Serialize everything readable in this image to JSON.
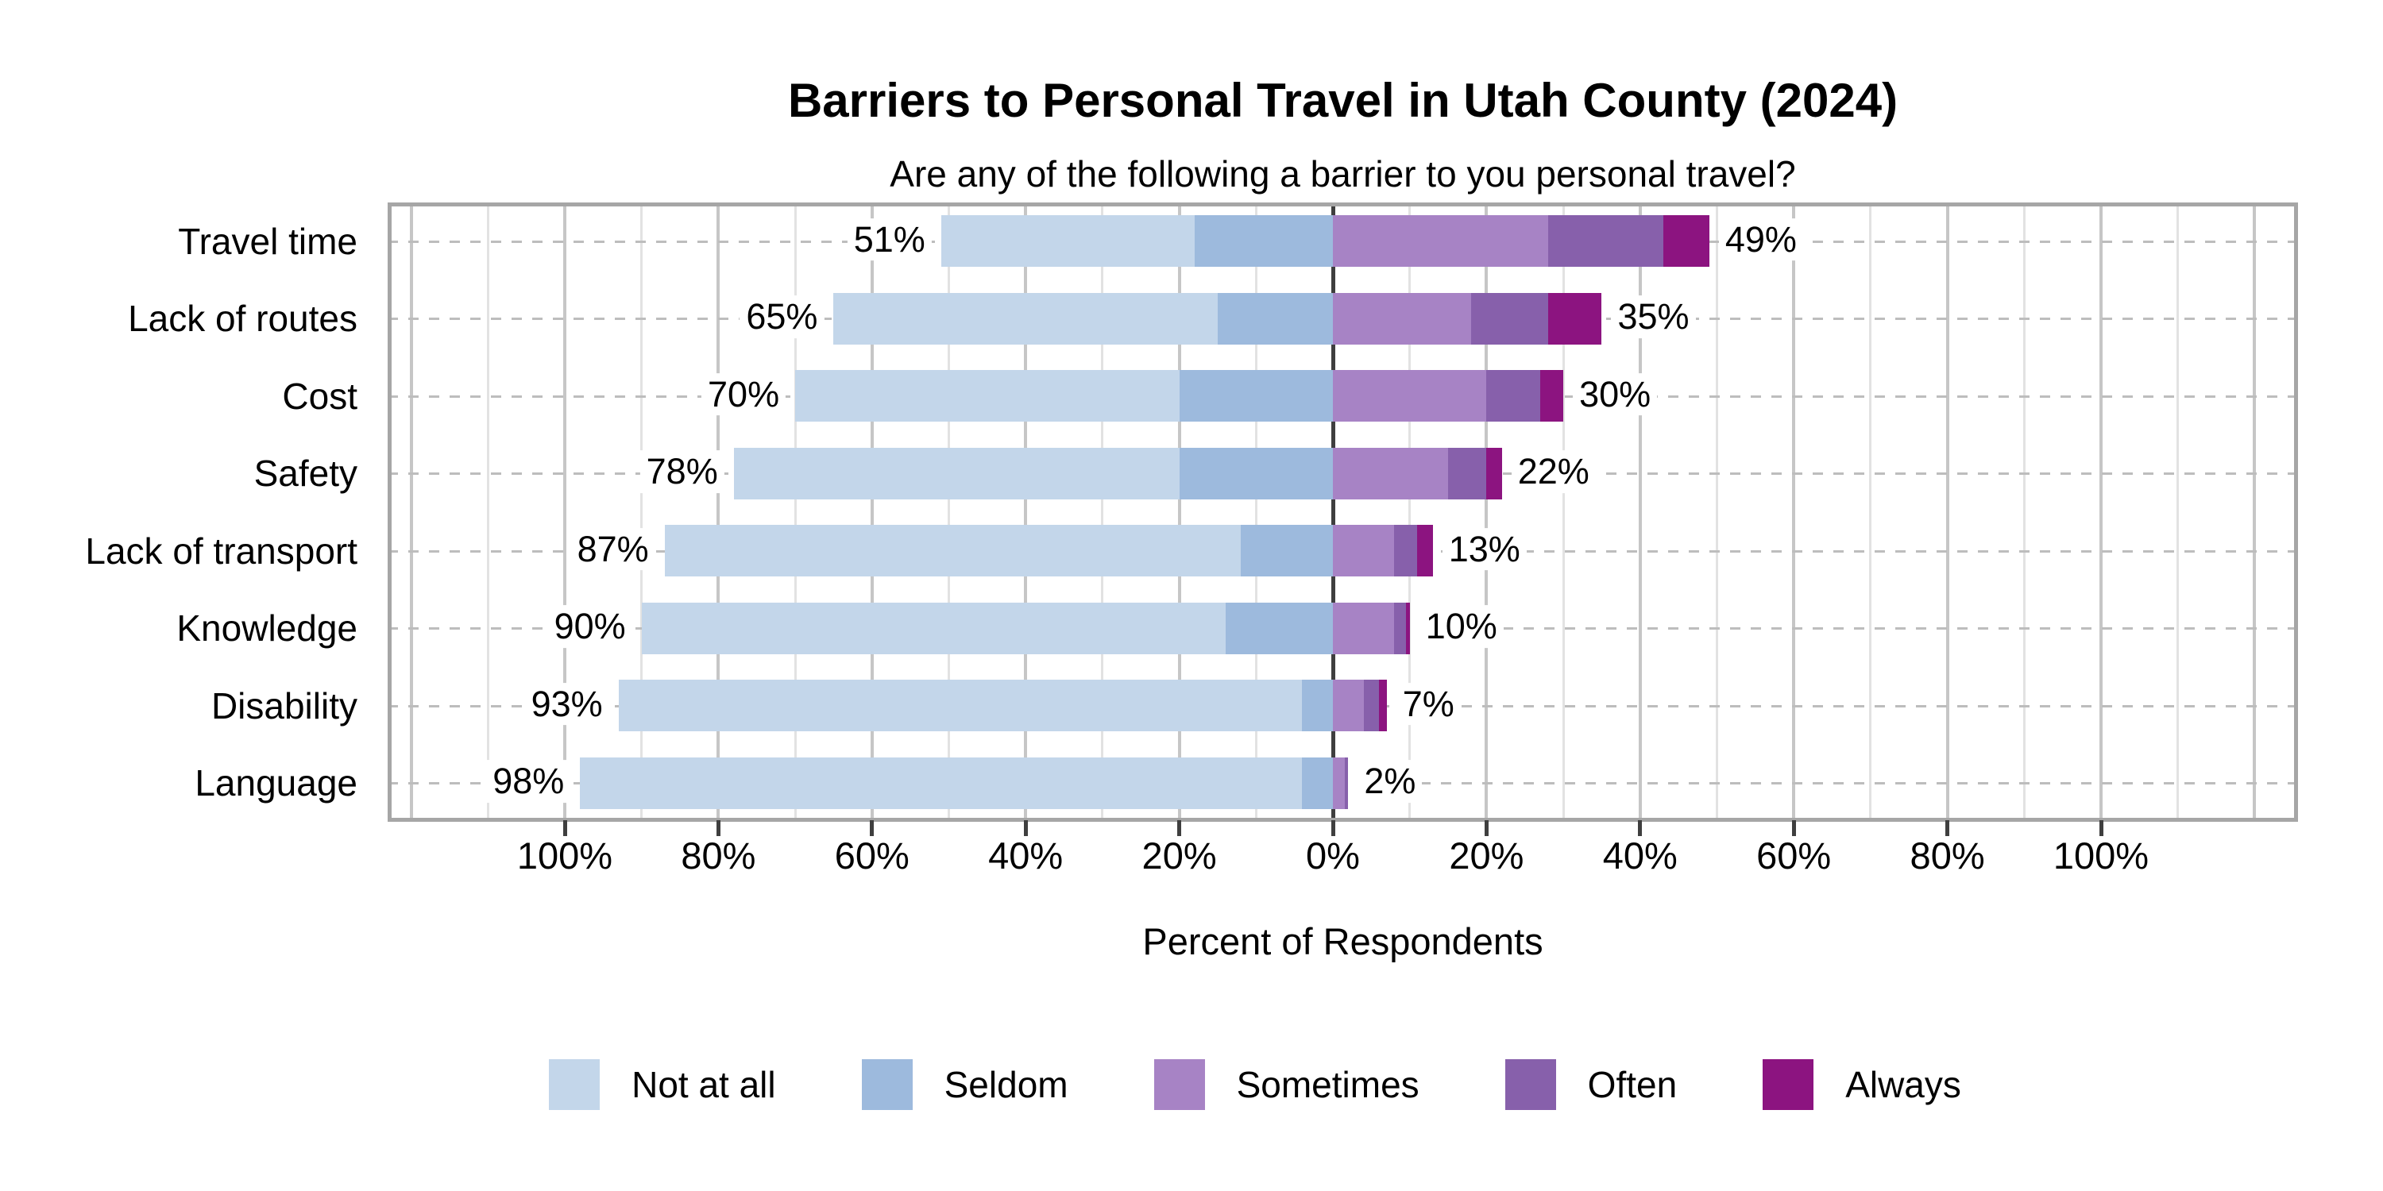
{
  "chart_data": {
    "type": "diverging_stacked_bar",
    "title": "Barriers to Personal Travel in Utah County (2024)",
    "subtitle": "Are any of the following a barrier to you personal travel?",
    "xlabel": "Percent of Respondents",
    "x_tick_labels": [
      "100%",
      "80%",
      "60%",
      "40%",
      "20%",
      "0%",
      "20%",
      "40%",
      "60%",
      "80%",
      "100%"
    ],
    "x_tick_values": [
      -100,
      -80,
      -60,
      -40,
      -20,
      0,
      20,
      40,
      60,
      80,
      100
    ],
    "xlim": [
      -123,
      126
    ],
    "grid_step": 10,
    "grid_on": true,
    "legend_position": "bottom",
    "legend": [
      {
        "id": "not_at_all",
        "label": "Not at all",
        "color": "#c3d6ea"
      },
      {
        "id": "seldom",
        "label": "Seldom",
        "color": "#9dbadd"
      },
      {
        "id": "sometimes",
        "label": "Sometimes",
        "color": "#a783c5"
      },
      {
        "id": "often",
        "label": "Often",
        "color": "#8760ab"
      },
      {
        "id": "always",
        "label": "Always",
        "color": "#8c1480"
      }
    ],
    "negative_series": [
      "not_at_all",
      "seldom"
    ],
    "positive_series": [
      "sometimes",
      "often",
      "always"
    ],
    "rows": [
      {
        "category": "Travel time",
        "left_total_label": "51%",
        "right_total_label": "49%",
        "values": {
          "not_at_all": 33,
          "seldom": 18,
          "sometimes": 28,
          "often": 15,
          "always": 6
        }
      },
      {
        "category": "Lack of routes",
        "left_total_label": "65%",
        "right_total_label": "35%",
        "values": {
          "not_at_all": 50,
          "seldom": 15,
          "sometimes": 18,
          "often": 10,
          "always": 7
        }
      },
      {
        "category": "Cost",
        "left_total_label": "70%",
        "right_total_label": "30%",
        "values": {
          "not_at_all": 50,
          "seldom": 20,
          "sometimes": 20,
          "often": 7,
          "always": 3
        }
      },
      {
        "category": "Safety",
        "left_total_label": "78%",
        "right_total_label": "22%",
        "values": {
          "not_at_all": 58,
          "seldom": 20,
          "sometimes": 15,
          "often": 5,
          "always": 2
        }
      },
      {
        "category": "Lack of transport",
        "left_total_label": "87%",
        "right_total_label": "13%",
        "values": {
          "not_at_all": 75,
          "seldom": 12,
          "sometimes": 8,
          "often": 3,
          "always": 2
        }
      },
      {
        "category": "Knowledge",
        "left_total_label": "90%",
        "right_total_label": "10%",
        "values": {
          "not_at_all": 76,
          "seldom": 14,
          "sometimes": 8,
          "often": 1.5,
          "always": 0.5
        }
      },
      {
        "category": "Disability",
        "left_total_label": "93%",
        "right_total_label": "7%",
        "values": {
          "not_at_all": 89,
          "seldom": 4,
          "sometimes": 4,
          "often": 2,
          "always": 1
        }
      },
      {
        "category": "Language",
        "left_total_label": "98%",
        "right_total_label": "2%",
        "values": {
          "not_at_all": 94,
          "seldom": 4,
          "sometimes": 1.5,
          "often": 0.5,
          "always": 0
        }
      }
    ],
    "style_colors": {
      "background": "#ffffff",
      "text": "#000000",
      "plot_border": "#a6a6a6",
      "zero_line": "#3f3f3f",
      "grid_major": "#c6c6c6",
      "grid_minor": "#e2e2e2",
      "leader_line": "#bdbdbd"
    }
  }
}
